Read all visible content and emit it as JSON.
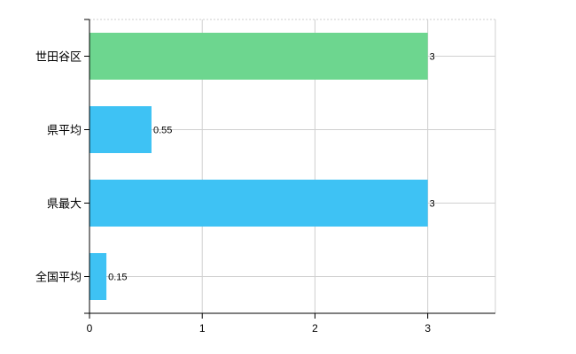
{
  "chart_data": {
    "type": "bar",
    "orientation": "horizontal",
    "categories": [
      "世田谷区",
      "県平均",
      "県最大",
      "全国平均"
    ],
    "values": [
      3,
      0.55,
      3,
      0.15
    ],
    "data_labels": [
      "3",
      "0.55",
      "3",
      "0.15"
    ],
    "colors": [
      "#6dd68f",
      "#3ec2f4",
      "#3ec2f4",
      "#3ec2f4"
    ],
    "xlim": [
      0,
      3.6
    ],
    "x_ticks": [
      0,
      1,
      2,
      3
    ],
    "x_tick_labels": [
      "0",
      "1",
      "2",
      "3"
    ],
    "title": "",
    "xlabel": "",
    "ylabel": "",
    "grid": true,
    "legend": "none"
  }
}
